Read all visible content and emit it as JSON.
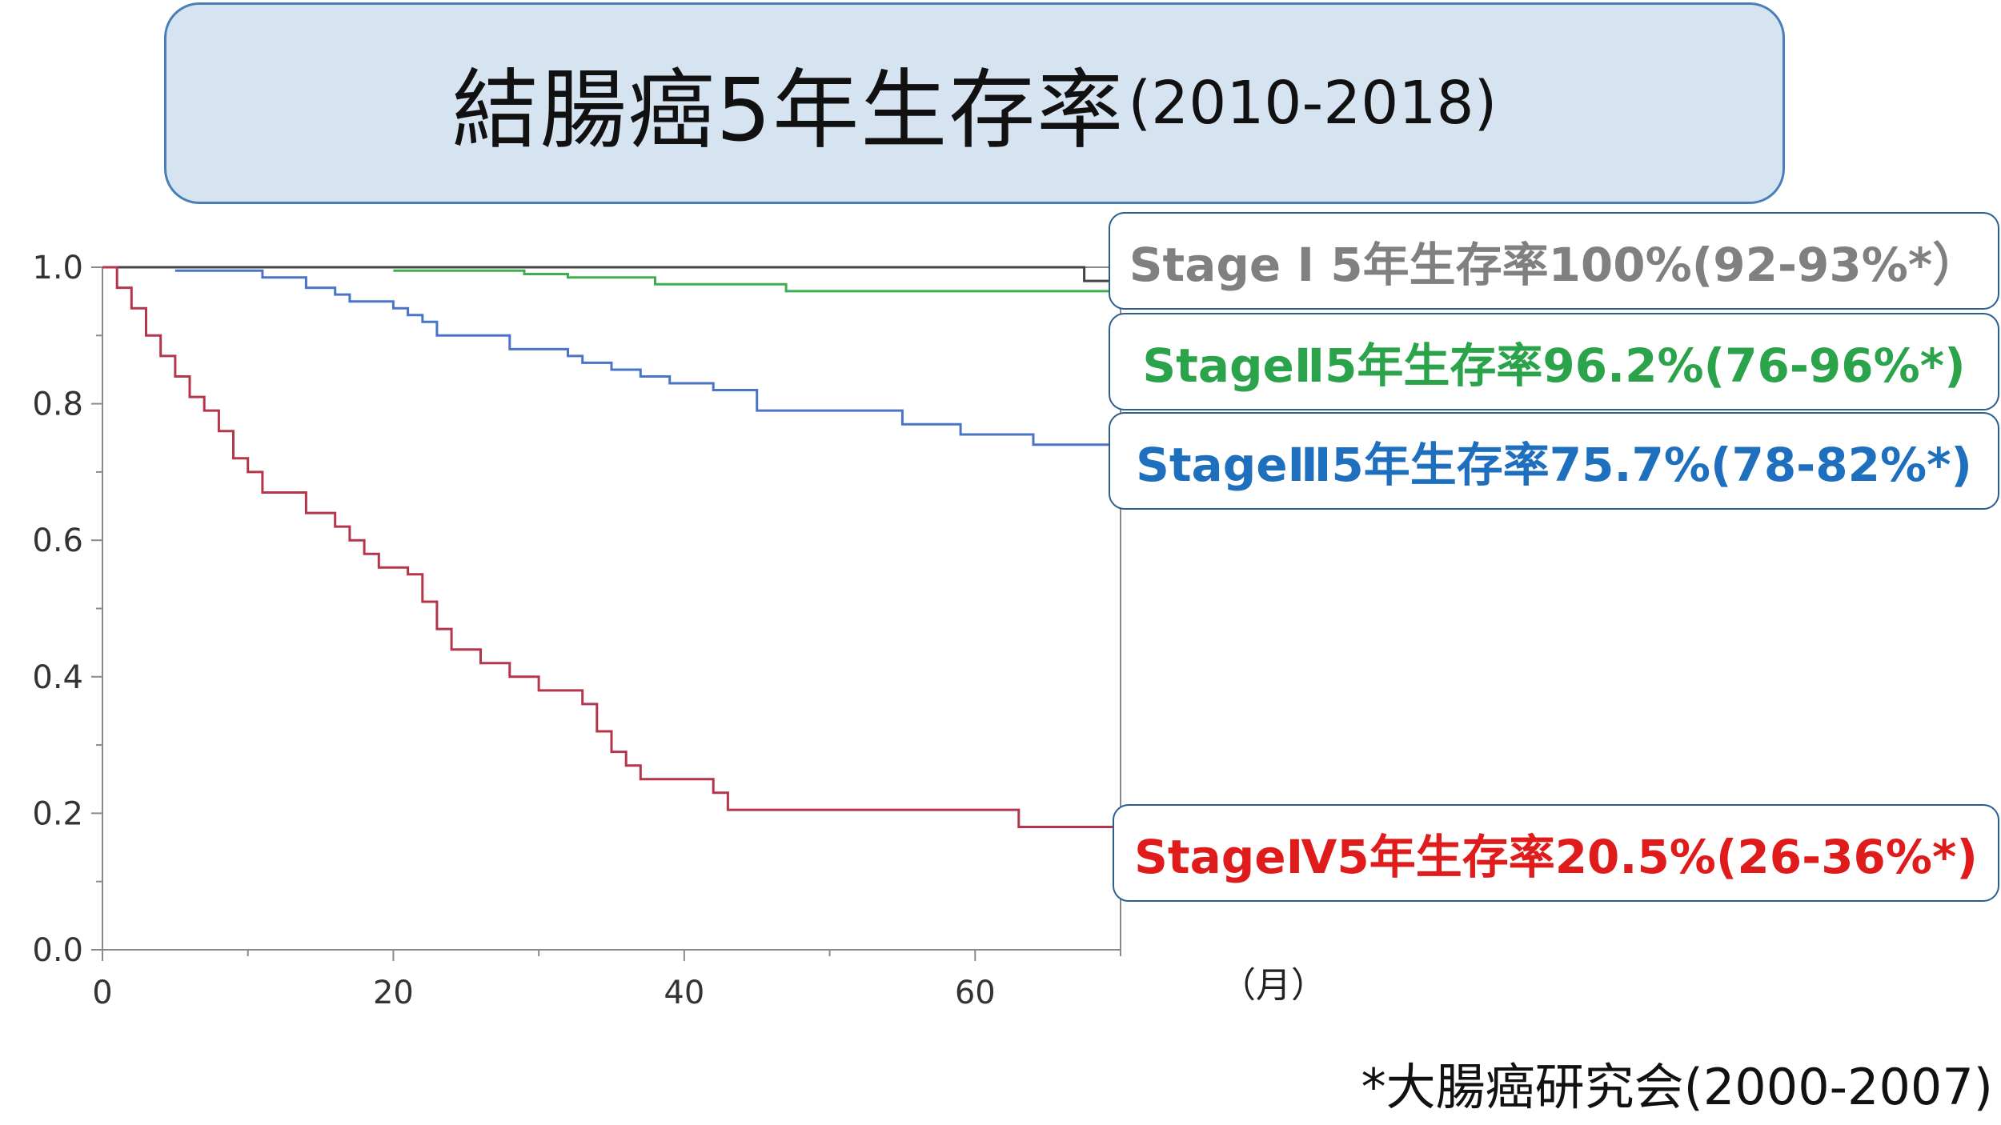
{
  "title": {
    "main": "結腸癌5年生存率",
    "period": "(2010-2018)"
  },
  "x_unit": "（月）",
  "source_note": "*大腸癌研究会(2000-2007)",
  "colors": {
    "stage1": "#808080",
    "stage2": "#2aa34a",
    "stage3": "#1f6fbf",
    "stage4": "#e01b1b",
    "curve1": "#444444",
    "curve2": "#3fae4f",
    "curve3": "#4a74c9",
    "curve4": "#b5364a"
  },
  "chart_data": {
    "type": "line",
    "step": true,
    "xlim": [
      0,
      70
    ],
    "ylim": [
      0,
      1
    ],
    "xticks": [
      0,
      20,
      40,
      60
    ],
    "yticks": [
      "0.0",
      "0.2",
      "0.4",
      "0.6",
      "0.8",
      "1.0"
    ],
    "grid": false,
    "series": [
      {
        "name": "Stage Ⅰ 5年生存率100%(92-93%*）",
        "points": [
          [
            0,
            1.0
          ],
          [
            67.5,
            1.0
          ],
          [
            67.5,
            0.98
          ],
          [
            70,
            0.98
          ]
        ]
      },
      {
        "name": "StageⅡ5年生存率96.2%(76-96%*)",
        "points": [
          [
            20,
            0.995
          ],
          [
            29,
            0.99
          ],
          [
            32,
            0.985
          ],
          [
            38,
            0.975
          ],
          [
            47,
            0.965
          ],
          [
            70,
            0.962
          ]
        ]
      },
      {
        "name": "StageⅢ5年生存率75.7%(78-82%*)",
        "points": [
          [
            5,
            0.995
          ],
          [
            11,
            0.985
          ],
          [
            14,
            0.97
          ],
          [
            16,
            0.96
          ],
          [
            17,
            0.95
          ],
          [
            20,
            0.94
          ],
          [
            21,
            0.93
          ],
          [
            22,
            0.92
          ],
          [
            23,
            0.9
          ],
          [
            28,
            0.88
          ],
          [
            32,
            0.87
          ],
          [
            33,
            0.86
          ],
          [
            35,
            0.85
          ],
          [
            37,
            0.84
          ],
          [
            39,
            0.83
          ],
          [
            42,
            0.82
          ],
          [
            45,
            0.79
          ],
          [
            55,
            0.77
          ],
          [
            59,
            0.755
          ],
          [
            64,
            0.74
          ],
          [
            70,
            0.737
          ]
        ]
      },
      {
        "name": "StageⅣ5年生存率20.5%(26-36%*)",
        "points": [
          [
            0,
            1.0
          ],
          [
            1,
            0.97
          ],
          [
            2,
            0.94
          ],
          [
            3,
            0.9
          ],
          [
            4,
            0.87
          ],
          [
            5,
            0.84
          ],
          [
            6,
            0.81
          ],
          [
            7,
            0.79
          ],
          [
            8,
            0.76
          ],
          [
            9,
            0.72
          ],
          [
            10,
            0.7
          ],
          [
            11,
            0.67
          ],
          [
            14,
            0.64
          ],
          [
            16,
            0.62
          ],
          [
            17,
            0.6
          ],
          [
            18,
            0.58
          ],
          [
            19,
            0.56
          ],
          [
            21,
            0.55
          ],
          [
            22,
            0.51
          ],
          [
            23,
            0.47
          ],
          [
            24,
            0.44
          ],
          [
            26,
            0.42
          ],
          [
            28,
            0.4
          ],
          [
            30,
            0.38
          ],
          [
            33,
            0.36
          ],
          [
            34,
            0.32
          ],
          [
            35,
            0.29
          ],
          [
            36,
            0.27
          ],
          [
            37,
            0.25
          ],
          [
            42,
            0.23
          ],
          [
            43,
            0.205
          ],
          [
            63,
            0.18
          ],
          [
            70,
            0.165
          ]
        ]
      }
    ]
  }
}
